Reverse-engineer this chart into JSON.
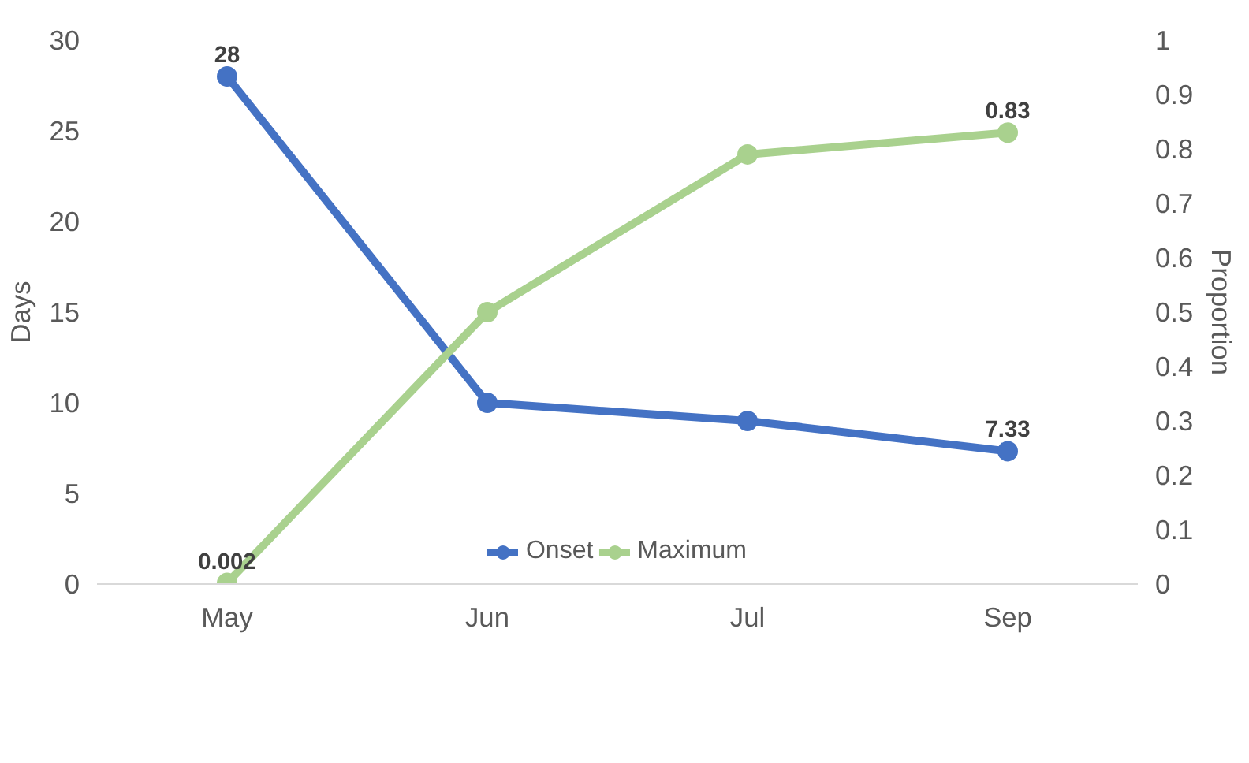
{
  "chart_data": {
    "type": "line",
    "categories": [
      "May",
      "Jun",
      "Jul",
      "Sep"
    ],
    "ylabel": "Days",
    "y2label": "Proportion",
    "ylim": [
      0,
      30
    ],
    "yticks": [
      0,
      5,
      10,
      15,
      20,
      25,
      30
    ],
    "y2lim": [
      0,
      1
    ],
    "y2ticks": [
      0,
      0.1,
      0.2,
      0.3,
      0.4,
      0.5,
      0.6,
      0.7,
      0.8,
      0.9,
      1
    ],
    "grid": false,
    "legend": "bottom",
    "marker": "circle",
    "line_style": "solid",
    "series": [
      {
        "name": "Onset",
        "color": "#4472c4",
        "values": [
          28,
          10,
          9,
          7.33
        ],
        "value_labels": [
          "28",
          null,
          null,
          "7.33"
        ]
      },
      {
        "name": "Maximum",
        "color": "#a9d18e",
        "axis": "y2",
        "values": [
          0.002,
          0.5,
          0.79,
          0.83
        ],
        "value_labels": [
          "0.002",
          null,
          null,
          "0.83"
        ]
      }
    ]
  }
}
